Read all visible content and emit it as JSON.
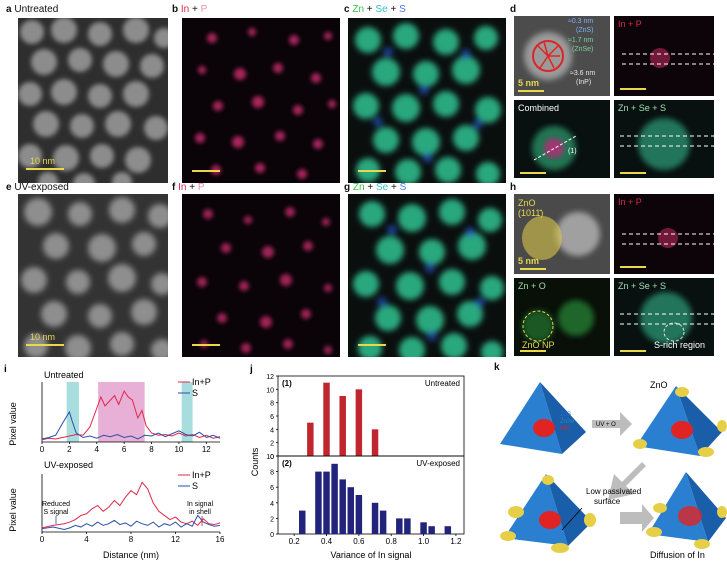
{
  "panels": {
    "a": {
      "letter": "a",
      "title": "Untreated",
      "scale": "10 nm"
    },
    "b": {
      "letter": "b",
      "el1": "In",
      "plus": "+",
      "el2": "P"
    },
    "c": {
      "letter": "c",
      "el1": "Zn",
      "plus1": "+",
      "el2": "Se",
      "plus2": "+",
      "el3": "S"
    },
    "d": {
      "letter": "d",
      "ann1": "≈0.3 nm",
      "ann1b": "(ZnS)",
      "ann2": "≈1.7 nm",
      "ann2b": "(ZnSe)",
      "ann3": "≈3.6 nm",
      "ann3b": "(InP)",
      "scale": "5 nm",
      "inp": "In + P",
      "combined": "Combined",
      "num": "(1)",
      "znses": "Zn + Se + S"
    },
    "e": {
      "letter": "e",
      "title": "UV-exposed",
      "scale": "10 nm"
    },
    "f": {
      "letter": "f",
      "el1": "In",
      "plus": "+",
      "el2": "P"
    },
    "g": {
      "letter": "g",
      "el1": "Zn",
      "plus1": "+",
      "el2": "Se",
      "plus2": "+",
      "el3": "S"
    },
    "h": {
      "letter": "h",
      "zno": "ZnO",
      "hkl": "(1011̄)",
      "scale": "5 nm",
      "inp": "In + P",
      "zno_map": "Zn + O",
      "zno_np": "ZnO NP",
      "znses": "Zn + Se + S",
      "srich": "S-rich region"
    },
    "i": {
      "letter": "i",
      "top_title": "Untreated",
      "bot_title": "UV-exposed",
      "ylabel": "Pixel value",
      "xlabel": "Distance (nm)",
      "legend1": "In+P",
      "legend2": "S",
      "ann_reduced": "Reduced\nS signal",
      "ann_inshell": "In signal\nin shell",
      "top_ticks": [
        "0",
        "2",
        "4",
        "6",
        "8",
        "10",
        "12"
      ],
      "bot_ticks": [
        "0",
        "4",
        "8",
        "12",
        "16"
      ]
    },
    "j": {
      "letter": "j",
      "ylabel": "Counts",
      "xlabel": "Variance of In signal",
      "top_tag": "(1)",
      "top_name": "Untreated",
      "bot_tag": "(2)",
      "bot_name": "UV-exposed",
      "top_yticks": [
        "0",
        "2",
        "4",
        "6",
        "8",
        "10",
        "12"
      ],
      "bot_yticks": [
        "0",
        "2",
        "4",
        "6",
        "8",
        "10"
      ],
      "xticks": [
        "0.2",
        "0.4",
        "0.6",
        "0.8",
        "1.0",
        "1.2"
      ]
    },
    "k": {
      "letter": "k",
      "zns": "ZnS",
      "znse": "ZnSe",
      "inp": "InP",
      "zno": "ZnO",
      "uvo": "UV + O",
      "low": "Low passivated\nsurface",
      "diff": "Diffusion of In"
    }
  },
  "chart_data": [
    {
      "type": "line",
      "title": "Untreated",
      "xlabel": "Distance (nm)",
      "ylabel": "Pixel value",
      "xlim": [
        0,
        13
      ],
      "series": [
        {
          "name": "In+P",
          "x": [
            0,
            0.5,
            1,
            1.5,
            2,
            2.5,
            3,
            3.5,
            4,
            4.3,
            4.6,
            5,
            5.3,
            5.6,
            6,
            6.3,
            6.6,
            7,
            7.3,
            7.6,
            8,
            8.5,
            9,
            9.5,
            10,
            10.5,
            11,
            11.5,
            12,
            12.5,
            13
          ],
          "values": [
            0.3,
            0.5,
            0.4,
            0.6,
            0.8,
            1.0,
            0.9,
            2.0,
            4.5,
            6.0,
            4.8,
            5.6,
            6.2,
            5.0,
            6.8,
            6.0,
            5.6,
            3.2,
            4.2,
            2.2,
            1.2,
            0.9,
            1.0,
            0.8,
            1.2,
            0.8,
            1.0,
            0.6,
            0.9,
            0.5,
            0.7
          ]
        },
        {
          "name": "S",
          "x": [
            0,
            0.5,
            1,
            1.5,
            2,
            2.2,
            2.5,
            3,
            3.5,
            4,
            4.5,
            5,
            5.5,
            6,
            6.5,
            7,
            7.5,
            8,
            8.5,
            9,
            9.5,
            10,
            10.5,
            11,
            11.5,
            12,
            12.5,
            13
          ],
          "values": [
            0.4,
            0.6,
            0.9,
            2.5,
            4.0,
            2.8,
            1.2,
            0.6,
            0.8,
            0.5,
            0.9,
            0.7,
            1.0,
            0.6,
            0.8,
            0.4,
            0.9,
            0.8,
            1.2,
            0.7,
            1.1,
            1.5,
            1.0,
            0.8,
            1.3,
            0.6,
            0.9,
            0.5
          ]
        }
      ],
      "highlights": [
        [
          1.8,
          2.7
        ],
        [
          4.1,
          7.5
        ],
        [
          10.2,
          11.0
        ]
      ]
    },
    {
      "type": "line",
      "title": "UV-exposed",
      "xlabel": "Distance (nm)",
      "ylabel": "Pixel value",
      "xlim": [
        0,
        16
      ],
      "series": [
        {
          "name": "In+P",
          "x": [
            0,
            1,
            2,
            2.5,
            3,
            3.5,
            4,
            4.5,
            5,
            5.5,
            6,
            6.5,
            7,
            7.5,
            8,
            8.5,
            9,
            9.5,
            10,
            10.5,
            11,
            11.5,
            12,
            12.5,
            13,
            13.5,
            14,
            14.5,
            15,
            15.5,
            16
          ],
          "values": [
            0.5,
            0.8,
            1.0,
            1.2,
            1.5,
            2.0,
            2.2,
            2.8,
            3.2,
            2.5,
            3.0,
            3.8,
            3.2,
            4.2,
            5.0,
            4.5,
            6.0,
            5.2,
            3.5,
            2.5,
            2.0,
            1.5,
            1.8,
            1.2,
            1.0,
            1.3,
            0.8,
            1.6,
            1.0,
            0.9,
            1.1
          ]
        },
        {
          "name": "S",
          "x": [
            0,
            1,
            2,
            2.5,
            3,
            3.5,
            4,
            4.5,
            5,
            5.5,
            6,
            6.5,
            7,
            7.5,
            8,
            8.5,
            9,
            9.5,
            10,
            10.5,
            11,
            11.5,
            12,
            12.5,
            13,
            13.5,
            14,
            14.5,
            15,
            15.5,
            16
          ],
          "values": [
            0.4,
            0.6,
            0.3,
            0.5,
            0.8,
            0.6,
            1.0,
            0.7,
            1.2,
            0.8,
            1.0,
            1.4,
            0.9,
            1.1,
            0.7,
            1.3,
            1.0,
            0.8,
            1.2,
            0.6,
            1.0,
            0.8,
            1.2,
            0.6,
            1.0,
            0.7,
            2.0,
            1.2,
            0.9,
            0.7,
            0.8
          ]
        }
      ]
    },
    {
      "type": "bar",
      "title": "Untreated",
      "tag": "(1)",
      "ylabel": "Counts",
      "ylim": [
        0,
        12
      ],
      "x": [
        0.3,
        0.4,
        0.5,
        0.6,
        0.7
      ],
      "values": [
        5,
        11,
        9,
        10,
        4
      ],
      "color": "#c0262e"
    },
    {
      "type": "bar",
      "title": "UV-exposed",
      "tag": "(2)",
      "ylabel": "Counts",
      "xlabel": "Variance of In signal",
      "ylim": [
        0,
        10
      ],
      "xlim": [
        0.1,
        1.25
      ],
      "x": [
        0.25,
        0.35,
        0.4,
        0.45,
        0.5,
        0.55,
        0.6,
        0.7,
        0.75,
        0.85,
        0.9,
        1.0,
        1.05,
        1.15
      ],
      "values": [
        3,
        8,
        8,
        9,
        7,
        6,
        5,
        4,
        3,
        2,
        2,
        1.5,
        1,
        1
      ],
      "color": "#22237a"
    }
  ],
  "colors": {
    "inp": "#e0284a",
    "s_line": "#2a4fa8",
    "hl_cyan": "#a8dde0",
    "hl_pink": "#e8b0d6",
    "bar_top": "#c0262e",
    "bar_bot": "#22237a",
    "scale_yellow": "#e8d84a"
  }
}
